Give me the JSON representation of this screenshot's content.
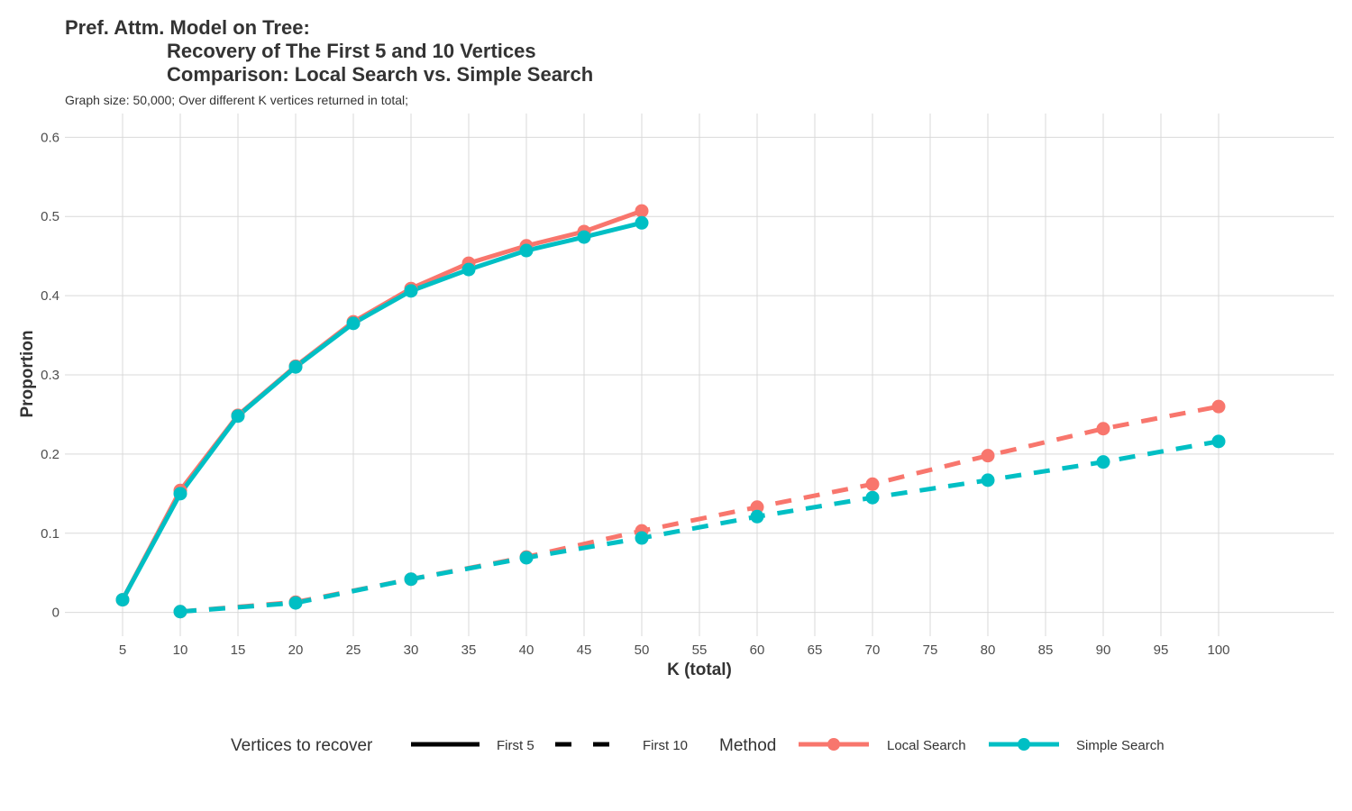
{
  "chart_data": {
    "type": "line",
    "title_lines": [
      "Pref. Attm. Model on Tree:",
      "Recovery of The First 5 and 10 Vertices",
      "Comparison: Local Search vs. Simple Search"
    ],
    "subtitle": "Graph size: 50,000; Over different K vertices returned in total;",
    "xlabel": "K (total)",
    "ylabel": "Proportion",
    "xlim": [
      0,
      110
    ],
    "ylim": [
      -0.03,
      0.63
    ],
    "x_ticks": [
      5,
      10,
      15,
      20,
      25,
      30,
      35,
      40,
      45,
      50,
      55,
      60,
      65,
      70,
      75,
      80,
      85,
      90,
      95,
      100
    ],
    "y_ticks": [
      0,
      0.1,
      0.2,
      0.3,
      0.4,
      0.5,
      0.6
    ],
    "y_tick_labels": [
      "0",
      "0.1",
      "0.2",
      "0.3",
      "0.4",
      "0.5",
      "0.6"
    ],
    "grid": true,
    "legend_position": "bottom",
    "legend": {
      "linetype_title": "Vertices to recover",
      "linetype_items": [
        "First 5",
        "First 10"
      ],
      "method_title": "Method",
      "method_items": [
        "Local Search",
        "Simple Search"
      ]
    },
    "series": [
      {
        "name": "Local Search",
        "group": "First 5",
        "color": "#F8766D",
        "dash": false,
        "x": [
          5,
          10,
          15,
          20,
          25,
          30,
          35,
          40,
          45,
          50
        ],
        "y": [
          0.016,
          0.154,
          0.249,
          0.311,
          0.367,
          0.409,
          0.441,
          0.463,
          0.481,
          0.507
        ]
      },
      {
        "name": "Simple Search",
        "group": "First 5",
        "color": "#00BFC4",
        "dash": false,
        "x": [
          5,
          10,
          15,
          20,
          25,
          30,
          35,
          40,
          45,
          50
        ],
        "y": [
          0.016,
          0.15,
          0.248,
          0.31,
          0.365,
          0.406,
          0.433,
          0.457,
          0.474,
          0.492
        ]
      },
      {
        "name": "Local Search",
        "group": "First 10",
        "color": "#F8766D",
        "dash": true,
        "x": [
          10,
          20,
          30,
          40,
          50,
          60,
          70,
          80,
          90,
          100
        ],
        "y": [
          0.001,
          0.013,
          0.042,
          0.07,
          0.103,
          0.133,
          0.162,
          0.198,
          0.232,
          0.26
        ]
      },
      {
        "name": "Simple Search",
        "group": "First 10",
        "color": "#00BFC4",
        "dash": true,
        "x": [
          10,
          20,
          30,
          40,
          50,
          60,
          70,
          80,
          90,
          100
        ],
        "y": [
          0.001,
          0.012,
          0.042,
          0.069,
          0.094,
          0.121,
          0.145,
          0.167,
          0.19,
          0.216
        ]
      }
    ]
  }
}
